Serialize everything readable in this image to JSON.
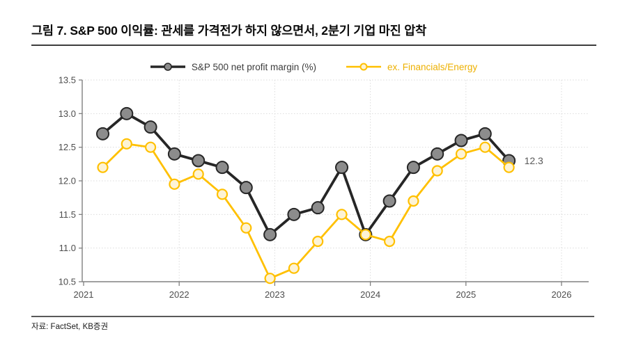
{
  "figure": {
    "title": "그림 7. S&P 500 이익률: 관세를 가격전가 하지 않으면서, 2분기 기업 마진 압착",
    "source": "자료: FactSet, KB증권"
  },
  "chart_data": {
    "type": "line",
    "title": "S&P 500 net profit margin (%) vs ex. Financials/Energy",
    "categories": [
      "2021Q1",
      "2021Q2",
      "2021Q3",
      "2021Q4",
      "2022Q1",
      "2022Q2",
      "2022Q3",
      "2022Q4",
      "2023Q1",
      "2023Q2",
      "2023Q3",
      "2023Q4",
      "2024Q1",
      "2024Q2",
      "2024Q3",
      "2024Q4",
      "2025Q1",
      "2025Q2"
    ],
    "x_tick_labels": [
      "2021",
      "2022",
      "2023",
      "2024",
      "2025",
      "2026"
    ],
    "y_ticks": [
      10.5,
      11.0,
      11.5,
      12.0,
      12.5,
      13.0,
      13.5
    ],
    "ylim": [
      10.5,
      13.5
    ],
    "grid": true,
    "legend_position": "top-center",
    "axis_color": "#808080",
    "grid_color": "#DBDBDB",
    "tick_label_color": "#4D4D4D",
    "series": [
      {
        "name": "S&P 500 net profit margin (%)",
        "color": "#262626",
        "marker_fill": "#8C8C8C",
        "label_color": "#3D3D3D",
        "values": [
          12.7,
          13.0,
          12.8,
          12.4,
          12.3,
          12.2,
          11.9,
          11.2,
          11.5,
          11.6,
          12.2,
          11.2,
          11.7,
          12.2,
          12.4,
          12.6,
          12.7,
          12.3
        ]
      },
      {
        "name": "ex. Financials/Energy",
        "color": "#FFC000",
        "marker_fill": "#FDF3D5",
        "label_color": "#EDB000",
        "values": [
          12.2,
          12.55,
          12.5,
          11.95,
          12.1,
          11.8,
          11.3,
          10.55,
          10.7,
          11.1,
          11.5,
          11.2,
          11.1,
          11.7,
          12.15,
          12.4,
          12.5,
          12.2
        ]
      }
    ],
    "annotation": {
      "text": "12.3",
      "series_index": 0,
      "point_index": 17,
      "color": "#595959"
    }
  }
}
